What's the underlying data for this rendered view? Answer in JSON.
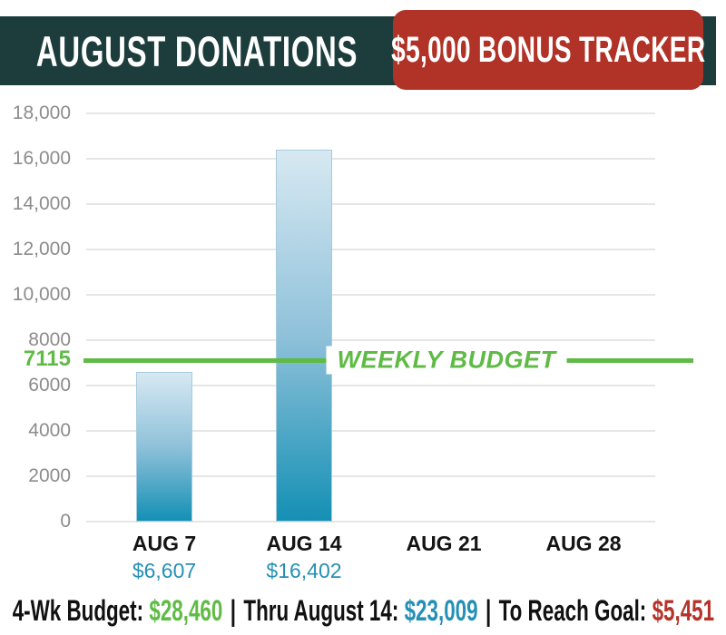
{
  "banner": {
    "title": "AUGUST DONATIONS",
    "bg_color": "#1d3d3d"
  },
  "badge": {
    "label": "$5,000 BONUS TRACKER",
    "bg_color": "#b13226"
  },
  "chart_data": {
    "type": "bar",
    "title": "August Donations — $5,000 Bonus Tracker",
    "categories": [
      "AUG 7",
      "AUG 14",
      "AUG 21",
      "AUG 28"
    ],
    "values": [
      6607,
      16402,
      null,
      null
    ],
    "value_labels": [
      "$6,607",
      "$16,402",
      "",
      ""
    ],
    "value_label_color": "#2590b5",
    "ylim": [
      0,
      18000
    ],
    "ytick_values": [
      0,
      2000,
      4000,
      6000,
      8000,
      10000,
      12000,
      14000,
      16000,
      18000
    ],
    "ytick_labels": [
      "0",
      "2000",
      "4000",
      "6000",
      "8000",
      "10,000",
      "12,000",
      "14,000",
      "16,000",
      "18,000"
    ],
    "grid": true,
    "legend": "none",
    "budget_line": {
      "value": 7115,
      "label": "7115",
      "annotation": "WEEKLY BUDGET",
      "color": "#5fbb46"
    },
    "bar_gradient": {
      "top": "#d7e9f2",
      "mid": "#8fc1da",
      "bottom": "#1490b4"
    }
  },
  "summary": {
    "separator": "|",
    "items": [
      {
        "label": "4-Wk Budget:",
        "value": "$28,460",
        "color": "#5fbb46"
      },
      {
        "label": "Thru August 14:",
        "value": "$23,009",
        "color": "#2590b5"
      },
      {
        "label": "To Reach Goal:",
        "value": "$5,451",
        "color": "#b5332a"
      }
    ]
  }
}
